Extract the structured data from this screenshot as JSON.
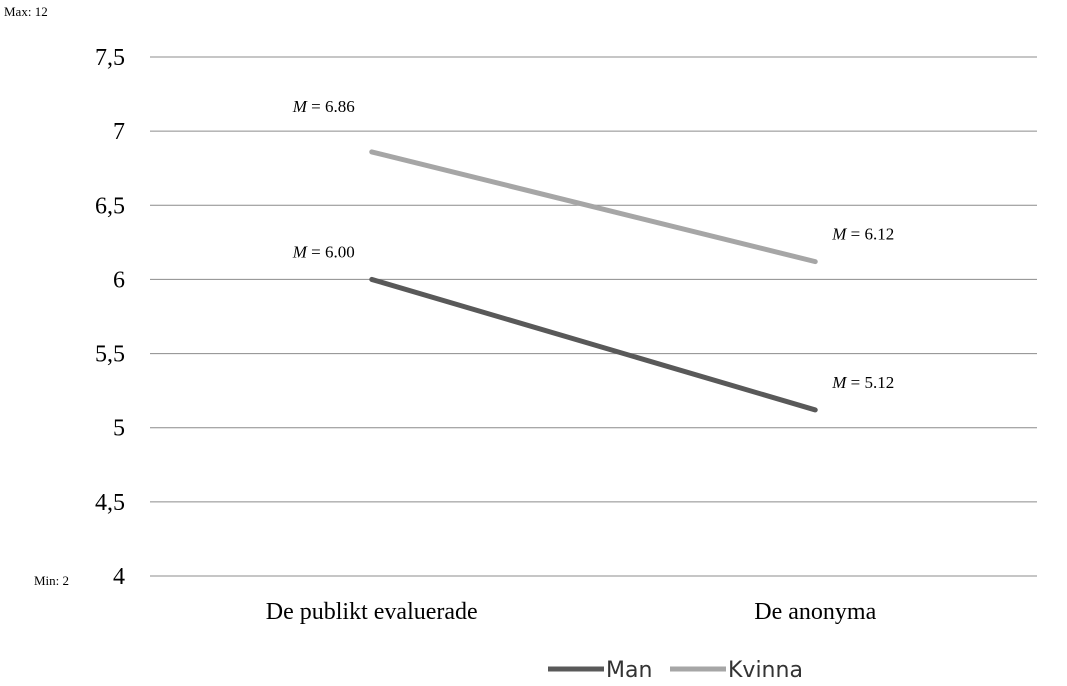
{
  "notes": {
    "max": "Max: 12",
    "min": "Min: 2"
  },
  "chart_data": {
    "type": "line",
    "categories": [
      "De publikt evaluerade",
      "De anonyma"
    ],
    "ylim": [
      4,
      7.5
    ],
    "yticks": [
      {
        "value": 4,
        "label": "4"
      },
      {
        "value": 4.5,
        "label": "4,5"
      },
      {
        "value": 5,
        "label": "5"
      },
      {
        "value": 5.5,
        "label": "5,5"
      },
      {
        "value": 6,
        "label": "6"
      },
      {
        "value": 6.5,
        "label": "6,5"
      },
      {
        "value": 7,
        "label": "7"
      },
      {
        "value": 7.5,
        "label": "7,5"
      }
    ],
    "grid": true,
    "legend_position": "bottom",
    "series": [
      {
        "name": "Man",
        "values": [
          6.0,
          5.12
        ],
        "color": "#595959",
        "labels": [
          "6.00",
          "5.12"
        ]
      },
      {
        "name": "Kvinna",
        "values": [
          6.86,
          6.12
        ],
        "color": "#a6a6a6",
        "labels": [
          "6.86",
          "6.12"
        ]
      }
    ],
    "label_prefix": "M",
    "label_equals": " = "
  }
}
